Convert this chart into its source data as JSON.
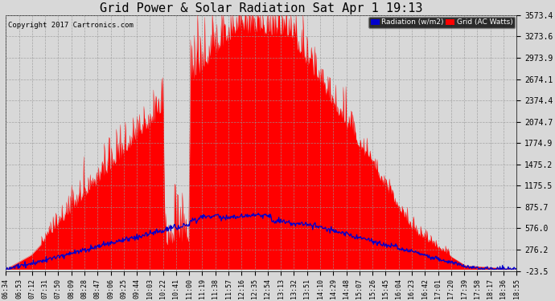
{
  "title": "Grid Power & Solar Radiation Sat Apr 1 19:13",
  "copyright": "Copyright 2017 Cartronics.com",
  "legend_radiation": "Radiation (w/m2)",
  "legend_grid": "Grid (AC Watts)",
  "yticks": [
    -23.5,
    276.2,
    576.0,
    875.7,
    1175.5,
    1475.2,
    1774.9,
    2074.7,
    2374.4,
    2674.1,
    2973.9,
    3273.6,
    3573.4
  ],
  "ymin": -23.5,
  "ymax": 3573.4,
  "grid_color": "#ff0000",
  "radiation_color": "#0000cc",
  "background_color": "#d8d8d8",
  "title_fontsize": 11,
  "xtick_labels": [
    "06:34",
    "06:53",
    "07:12",
    "07:31",
    "07:50",
    "08:09",
    "08:28",
    "08:47",
    "09:06",
    "09:25",
    "09:44",
    "10:03",
    "10:22",
    "10:41",
    "11:00",
    "11:19",
    "11:38",
    "11:57",
    "12:16",
    "12:35",
    "12:54",
    "13:13",
    "13:32",
    "13:51",
    "14:10",
    "14:29",
    "14:48",
    "15:07",
    "15:26",
    "15:45",
    "16:04",
    "16:23",
    "16:42",
    "17:01",
    "17:20",
    "17:39",
    "17:58",
    "18:17",
    "18:36",
    "18:55"
  ]
}
